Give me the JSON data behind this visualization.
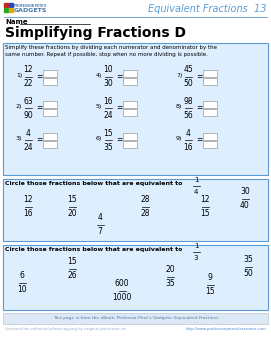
{
  "title": "Equivalent Fractions  13",
  "title_color": "#5b9bd5",
  "page_title": "Simplifying Fractions D",
  "name_label": "Name",
  "header_line_color": "#5b9bd5",
  "bg_color": "#ffffff",
  "box_bg": "#ddeeff",
  "box_border": "#5b9bd5",
  "instruction_text": "Simplify these fractions by dividing each numerator and denominator by the\nsame number. Repeat if possible, stop when no more dividing is possible.",
  "problems": [
    {
      "num": "1)",
      "frac": [
        "12",
        "22"
      ]
    },
    {
      "num": "4)",
      "frac": [
        "10",
        "30"
      ]
    },
    {
      "num": "7)",
      "frac": [
        "45",
        "50"
      ]
    },
    {
      "num": "2)",
      "frac": [
        "63",
        "90"
      ]
    },
    {
      "num": "5)",
      "frac": [
        "16",
        "24"
      ]
    },
    {
      "num": "8)",
      "frac": [
        "98",
        "56"
      ]
    },
    {
      "num": "3)",
      "frac": [
        "4",
        "24"
      ]
    },
    {
      "num": "6)",
      "frac": [
        "15",
        "35"
      ]
    },
    {
      "num": "9)",
      "frac": [
        "4",
        "16"
      ]
    }
  ],
  "circle_section1_title": "Circle those fractions below that are equivalent to",
  "circle_section1_frac": [
    "1",
    "4"
  ],
  "circle_section1_fracs": [
    [
      "12",
      "16"
    ],
    [
      "15",
      "20"
    ],
    [
      "28",
      "28"
    ],
    [
      "12",
      "15"
    ],
    [
      "4",
      "7"
    ],
    [
      "30",
      "40"
    ]
  ],
  "circle_section2_title": "Circle those fractions below that are equivalent to",
  "circle_section2_frac": [
    "1",
    "3"
  ],
  "circle_section2_fracs": [
    [
      "6",
      "10"
    ],
    [
      "15",
      "26"
    ],
    [
      "600",
      "1000"
    ],
    [
      "20",
      "35"
    ],
    [
      "9",
      "15"
    ],
    [
      "35",
      "50"
    ]
  ],
  "footer_text": "This page is from the eBook: Professor Pete's Gadgets: Equivalent Fractions",
  "footer_url": "http://www.professorpetesclassroom.com",
  "footer_license": "Licensed for unlimited photocopying by original purchaser on"
}
